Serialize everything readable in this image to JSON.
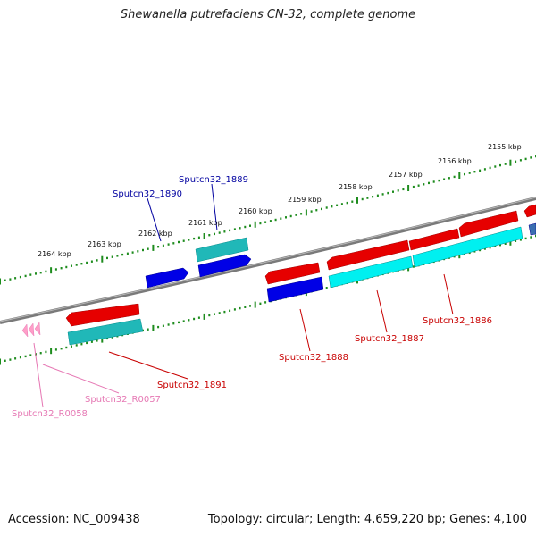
{
  "title": "Shewanella putrefaciens CN-32, complete genome",
  "accession_label": "Accession: NC_009438",
  "topology_label": "Topology: circular; Length: 4,659,220 bp; Genes: 4,100",
  "colors": {
    "backbone": "#808080",
    "tick": "#1e8c1e",
    "cds_forward": "#e60000",
    "cds_reverse": "#0000e6",
    "gene_reverse": "#00cccc",
    "gene_forward": "#00b4b4",
    "rna": "#ff9ec8",
    "label_blue": "#0000a0",
    "label_red": "#c80000",
    "label_pink": "#e678b4"
  },
  "scale_labels": [
    "2155 kbp",
    "2156 kbp",
    "2157 kbp",
    "2158 kbp",
    "2159 kbp",
    "2160 kbp",
    "2161 kbp",
    "2162 kbp",
    "2163 kbp",
    "2164 kbp"
  ],
  "gene_labels": [
    {
      "text": "Sputcn32_1890",
      "group": "blue"
    },
    {
      "text": "Sputcn32_1889",
      "group": "blue"
    },
    {
      "text": "Sputcn32_1886",
      "group": "red"
    },
    {
      "text": "Sputcn32_1887",
      "group": "red"
    },
    {
      "text": "Sputcn32_1888",
      "group": "red"
    },
    {
      "text": "Sputcn32_1891",
      "group": "red"
    },
    {
      "text": "Sputcn32_R0057",
      "group": "pink"
    },
    {
      "text": "Sputcn32_R0058",
      "group": "pink"
    }
  ]
}
